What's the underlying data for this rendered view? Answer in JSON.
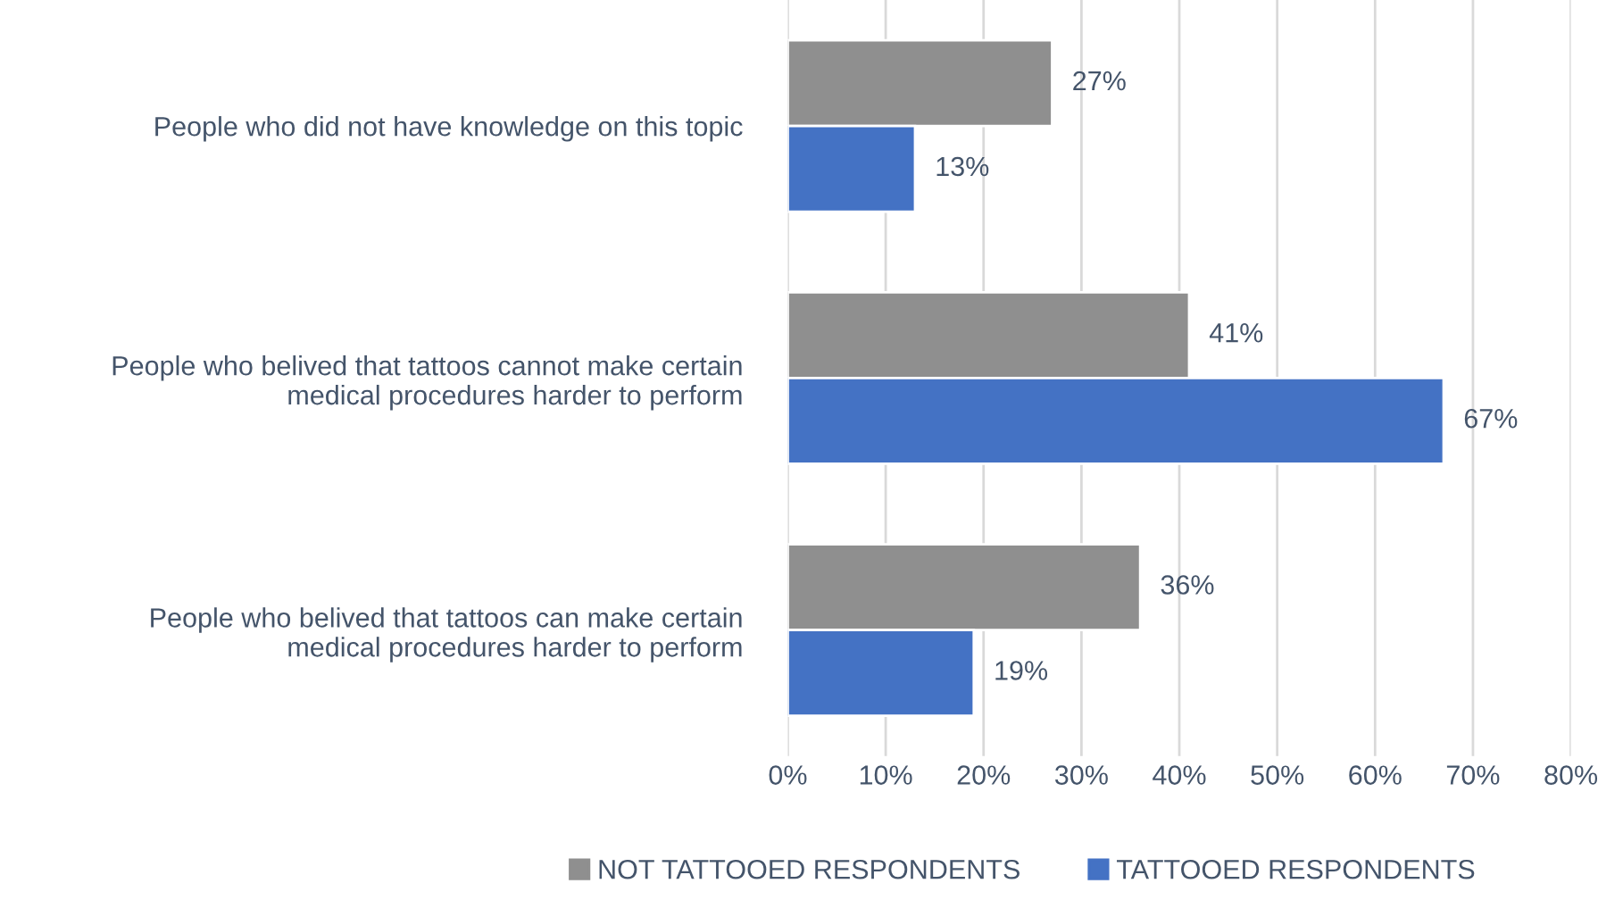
{
  "chart_data": {
    "type": "bar",
    "orientation": "horizontal",
    "categories": [
      "People who did not have knowledge on this topic",
      "People who belived that tattoos cannot make certain\nmedical procedures harder to perform",
      "People who belived that tattoos can make certain\nmedical procedures harder to perform"
    ],
    "series": [
      {
        "name": "NOT TATTOOED RESPONDENTS",
        "color": "#8f8f8f",
        "values": [
          27,
          41,
          36
        ],
        "value_labels": [
          "27%",
          "41%",
          "36%"
        ]
      },
      {
        "name": "TATTOOED RESPONDENTS",
        "color": "#4472c4",
        "values": [
          13,
          67,
          19
        ],
        "value_labels": [
          "13%",
          "67%",
          "19%"
        ]
      }
    ],
    "xlim": [
      0,
      80
    ],
    "xticks": [
      {
        "value": 0,
        "label": "0%"
      },
      {
        "value": 10,
        "label": "10%"
      },
      {
        "value": 20,
        "label": "20%"
      },
      {
        "value": 30,
        "label": "30%"
      },
      {
        "value": 40,
        "label": "40%"
      },
      {
        "value": 50,
        "label": "50%"
      },
      {
        "value": 60,
        "label": "60%"
      },
      {
        "value": 70,
        "label": "70%"
      },
      {
        "value": 80,
        "label": "80%"
      }
    ],
    "grid": "x",
    "legend": "bottom"
  }
}
